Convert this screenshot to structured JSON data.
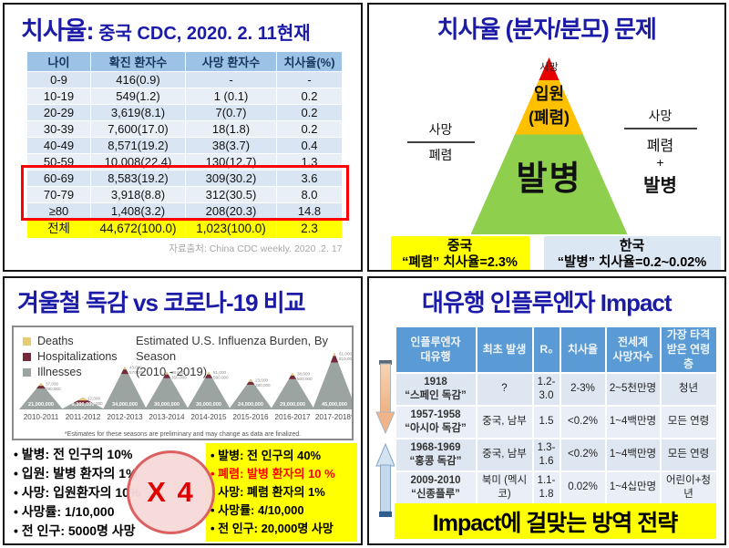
{
  "colors": {
    "title_navy": "#1b1ba8",
    "q1_header_bg": "#9cc2e5",
    "row_blue_dark": "#d9e5f2",
    "row_blue_light": "#e9eff7",
    "highlight_red": "#fe0000",
    "total_yellow": "#ffff00",
    "pyramid_red": "#e60000",
    "pyramid_orange": "#ffc000",
    "pyramid_green": "#8ecf4d",
    "korea_box_blue": "#dbe7f3",
    "q4_header_blue": "#5b9bd5",
    "deaths_swatch": "#e7cc72",
    "hospitalizations_swatch": "#76293a",
    "illnesses_swatch": "#9ba4a0"
  },
  "q1": {
    "title_main": "치사율:",
    "title_rest": " 중국 CDC, 2020. 2. 11현재",
    "table": {
      "headers": [
        "나이",
        "확진 환자수",
        "사망 환자수",
        "치사율(%)"
      ],
      "rows": [
        [
          "0-9",
          "416(0.9)",
          "-",
          "-"
        ],
        [
          "10-19",
          "549(1.2)",
          "1 (0.1)",
          "0.2"
        ],
        [
          "20-29",
          "3,619(8.1)",
          "7(0.7)",
          "0.2"
        ],
        [
          "30-39",
          "7,600(17.0)",
          "18(1.8)",
          "0.2"
        ],
        [
          "40-49",
          "8,571(19.2)",
          "38(3.7)",
          "0.4"
        ],
        [
          "50-59",
          "10,008(22.4)",
          "130(12.7)",
          "1.3"
        ],
        [
          "60-69",
          "8,583(19.2)",
          "309(30.2)",
          "3.6"
        ],
        [
          "70-79",
          "3,918(8.8)",
          "312(30.5)",
          "8.0"
        ],
        [
          "≥80",
          "1,408(3.2)",
          "208(20.3)",
          "14.8"
        ]
      ],
      "total_row": [
        "전체",
        "44,672(100.0)",
        "1,023(100.0)",
        "2.3"
      ],
      "highlighted_age_groups": [
        "60-69",
        "70-79",
        "≥80"
      ]
    },
    "source": "자료출처: China CDC weekly. 2020 .2. 17"
  },
  "q2": {
    "title": "치사율 (분자/분모) 문제",
    "pyramid": {
      "tip_label": "사망",
      "mid_label_1": "입원",
      "mid_label_2": "(폐렴)",
      "base_label": "발병"
    },
    "left_fraction": {
      "numerator": "사망",
      "denominator": "폐렴"
    },
    "right_fraction": {
      "numerator": "사망",
      "denominator_1": "폐렴",
      "operator": "+",
      "denominator_2": "발병"
    },
    "china_box": {
      "line1": "중국",
      "line2": "“폐렴” 치사율=2.3%"
    },
    "korea_box": {
      "line1": "한국",
      "line2": "“발병” 치사율=0.2~0.02%"
    }
  },
  "q3": {
    "title": "겨울철 독감 vs 코로나-19 비교",
    "chart_data": {
      "type": "area",
      "title": "Estimated U.S. Influenza Burden, By Season",
      "subtitle": "(2010 - 2019)",
      "legend": [
        {
          "label": "Deaths",
          "color": "#e7cc72"
        },
        {
          "label": "Hospitalizations",
          "color": "#76293a"
        },
        {
          "label": "Illnesses",
          "color": "#9ba4a0"
        }
      ],
      "categories": [
        "2010-2011",
        "2011-2012",
        "2012-2013",
        "2013-2014",
        "2014-2015",
        "2015-2016",
        "2016-2017",
        "2017-2018*"
      ],
      "series": [
        {
          "name": "Illnesses",
          "values": [
            21000000,
            9300000,
            34000000,
            30000000,
            30000000,
            24000000,
            29000000,
            45000000
          ],
          "labels": [
            "21,000,000",
            "9,300,000",
            "34,000,000",
            "30,000,000",
            "30,000,000",
            "24,000,000",
            "29,000,000",
            "45,000,000"
          ]
        },
        {
          "name": "Hospitalizations",
          "values": [
            290000,
            140000,
            570000,
            350000,
            590000,
            280000,
            500000,
            810000
          ],
          "labels": [
            "290,000",
            "140,000",
            "570,000",
            "350,000",
            "590,000",
            "280,000",
            "500,000",
            "810,000"
          ]
        },
        {
          "name": "Deaths",
          "values": [
            37000,
            12000,
            43000,
            38000,
            51000,
            23000,
            38000,
            61000
          ],
          "labels": [
            "37,000",
            "12,000",
            "43,000",
            "38,000",
            "51,000",
            "23,000",
            "38,000",
            "61,000"
          ]
        }
      ],
      "footnote": "*Estimates for these seasons are preliminary and may change as data are finalized.",
      "ylim_max_illnesses": 45000000,
      "legend_position": "top-left",
      "grid": false
    },
    "left_bullets": [
      "발병: 전 인구의 10%",
      "입원: 발병 환자의 1%",
      "사망: 입원환자의 10%",
      "사망률: 1/10,000",
      "전 인구: 5000명 사망"
    ],
    "right_bullets": [
      {
        "text": "발병: 전 인구의 40%",
        "red": false
      },
      {
        "text": "폐렴: 발병 환자의 10 %",
        "red": true
      },
      {
        "text": "사망: 폐렴 환자의 1%",
        "red": false
      },
      {
        "text": "사망률: 4/10,000",
        "red": false
      },
      {
        "text": "전 인구: 20,000명 사망",
        "red": false
      }
    ],
    "multiplier": "X 4"
  },
  "q4": {
    "title": "대유행 인플루엔자 Impact",
    "table": {
      "headers": [
        "인플루엔자\n대유행",
        "최초 발생",
        "R₀",
        "치사율",
        "전세계\n사망자수",
        "가장 타격\n받은 연령층"
      ],
      "rows": [
        [
          "1918\n“스페인 독감”",
          "?",
          "1.2-\n3.0",
          "2-3%",
          "2~5천만명",
          "청년"
        ],
        [
          "1957-1958\n“아시아 독감”",
          "중국, 남부",
          "1.5",
          "<0.2%",
          "1~4백만명",
          "모든 연령"
        ],
        [
          "1968-1969\n“홍콩 독감”",
          "중국, 남부",
          "1.3-\n1.6",
          "<0.2%",
          "1~4백만명",
          "모든 연령"
        ],
        [
          "2009-2010\n“신종플루”",
          "북미 (멕시코)",
          "1.1-\n1.8",
          "0.02%",
          "1~4십만명",
          "어린이+청년"
        ]
      ]
    },
    "banner": "Impact에 걸맞는 방역 전략"
  }
}
